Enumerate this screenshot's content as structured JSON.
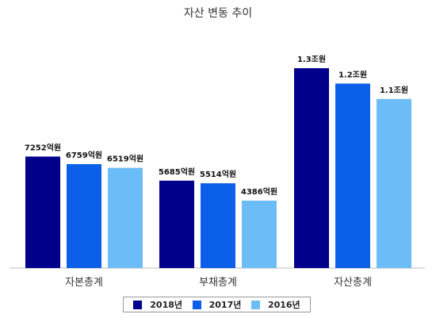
{
  "chart_data": {
    "type": "bar",
    "title": "자산 변동 추이",
    "categories": [
      "자본총계",
      "부채총계",
      "자산총계"
    ],
    "series": [
      {
        "name": "2018년",
        "color": "#00008b",
        "values": [
          7252,
          5685,
          13000
        ],
        "labels": [
          "7252억원",
          "5685억원",
          "1.3조원"
        ]
      },
      {
        "name": "2017년",
        "color": "#0b5fe8",
        "values": [
          6759,
          5514,
          12000
        ],
        "labels": [
          "6759억원",
          "5514억원",
          "1.2조원"
        ]
      },
      {
        "name": "2016년",
        "color": "#6cbcf8",
        "values": [
          6519,
          4386,
          11000
        ],
        "labels": [
          "6519억원",
          "4386억원",
          "1.1조원"
        ]
      }
    ],
    "value_unit": "억원",
    "ylim": [
      0,
      13000
    ],
    "grid": false,
    "legend_position": "bottom"
  }
}
